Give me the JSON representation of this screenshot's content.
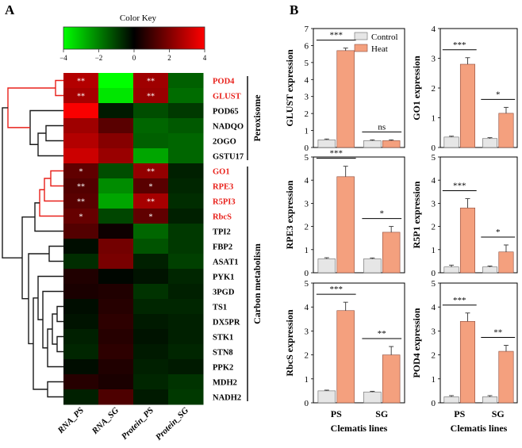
{
  "panels": {
    "a": "A",
    "b": "B"
  },
  "colors": {
    "red_highlight": "#e8201a",
    "control_bar": "#e6e6e6",
    "heat_bar": "#f4a07e",
    "bar_edge": "#8c4a3a",
    "dendro_black": "#1a1a1a"
  },
  "chart_data": [
    {
      "type": "heatmap",
      "title": "Color Key",
      "colorbar": {
        "ticks": [
          -4,
          -2,
          0,
          2,
          4
        ],
        "range": [
          -4,
          4
        ],
        "low_color": "#00ff00",
        "mid_color": "#000000",
        "high_color": "#ff0000"
      },
      "columns": [
        "RNA_PS",
        "RNA_SG",
        "Protein_PS",
        "Protein_SG"
      ],
      "rows": [
        {
          "gene": "POD4",
          "values": [
            2.8,
            -4.0,
            2.5,
            -1.5
          ],
          "marks": [
            "**",
            "",
            "**",
            ""
          ],
          "highlight": true
        },
        {
          "gene": "GLUST",
          "values": [
            2.6,
            -3.6,
            2.4,
            -1.7
          ],
          "marks": [
            "**",
            "",
            "**",
            ""
          ],
          "highlight": true
        },
        {
          "gene": "POD65",
          "values": [
            3.9,
            -0.4,
            -1.2,
            -0.9
          ],
          "marks": [
            "",
            "",
            "",
            ""
          ],
          "highlight": false
        },
        {
          "gene": "NADQO",
          "values": [
            2.5,
            1.4,
            -1.6,
            -1.4
          ],
          "marks": [
            "",
            "",
            "",
            ""
          ],
          "highlight": false
        },
        {
          "gene": "2OGO",
          "values": [
            2.8,
            2.1,
            -1.5,
            -1.6
          ],
          "marks": [
            "",
            "",
            "",
            ""
          ],
          "highlight": false
        },
        {
          "gene": "GSTU17",
          "values": [
            3.2,
            2.4,
            -2.6,
            -1.6
          ],
          "marks": [
            "",
            "",
            "",
            ""
          ],
          "highlight": false
        },
        {
          "gene": "GO1",
          "values": [
            1.5,
            -1.2,
            2.3,
            -0.5
          ],
          "marks": [
            "*",
            "",
            "**",
            ""
          ],
          "highlight": true
        },
        {
          "gene": "RPE3",
          "values": [
            1.3,
            -2.2,
            1.4,
            -0.6
          ],
          "marks": [
            "**",
            "",
            "*",
            ""
          ],
          "highlight": true
        },
        {
          "gene": "R5PI3",
          "values": [
            1.4,
            -2.6,
            2.6,
            -0.7
          ],
          "marks": [
            "**",
            "",
            "**",
            ""
          ],
          "highlight": true
        },
        {
          "gene": "RbcS",
          "values": [
            1.6,
            -1.1,
            1.5,
            -0.5
          ],
          "marks": [
            "*",
            "",
            "*",
            ""
          ],
          "highlight": true
        },
        {
          "gene": "TPI2",
          "values": [
            1.3,
            0.2,
            -1.6,
            -0.9
          ],
          "marks": [
            "",
            "",
            "",
            ""
          ],
          "highlight": false
        },
        {
          "gene": "FBP2",
          "values": [
            -0.2,
            1.8,
            -1.3,
            -0.9
          ],
          "marks": [
            "",
            "",
            "",
            ""
          ],
          "highlight": false
        },
        {
          "gene": "ASAT1",
          "values": [
            -0.7,
            1.9,
            -0.5,
            -1.0
          ],
          "marks": [
            "",
            "",
            "",
            ""
          ],
          "highlight": false
        },
        {
          "gene": "PYK1",
          "values": [
            0.5,
            -0.1,
            -0.3,
            -0.6
          ],
          "marks": [
            "",
            "",
            "",
            ""
          ],
          "highlight": false
        },
        {
          "gene": "3PGD",
          "values": [
            0.4,
            0.5,
            -0.8,
            -0.5
          ],
          "marks": [
            "",
            "",
            "",
            ""
          ],
          "highlight": false
        },
        {
          "gene": "TS1",
          "values": [
            -0.2,
            0.6,
            -0.6,
            -0.6
          ],
          "marks": [
            "",
            "",
            "",
            ""
          ],
          "highlight": false
        },
        {
          "gene": "DX5PR",
          "values": [
            -0.3,
            0.7,
            -0.4,
            -0.5
          ],
          "marks": [
            "",
            "",
            "",
            ""
          ],
          "highlight": false
        },
        {
          "gene": "STK1",
          "values": [
            -0.5,
            0.6,
            -0.3,
            -0.5
          ],
          "marks": [
            "",
            "",
            "",
            ""
          ],
          "highlight": false
        },
        {
          "gene": "STN8",
          "values": [
            -0.6,
            0.7,
            -0.4,
            -0.6
          ],
          "marks": [
            "",
            "",
            "",
            ""
          ],
          "highlight": false
        },
        {
          "gene": "PPK2",
          "values": [
            -0.2,
            0.5,
            -0.5,
            -0.4
          ],
          "marks": [
            "",
            "",
            "",
            ""
          ],
          "highlight": false
        },
        {
          "gene": "MDH2",
          "values": [
            0.6,
            0.4,
            -0.6,
            -0.8
          ],
          "marks": [
            "",
            "",
            "",
            ""
          ],
          "highlight": false
        },
        {
          "gene": "NADH2",
          "values": [
            -0.5,
            1.2,
            -0.4,
            -0.9
          ],
          "marks": [
            "",
            "",
            "",
            ""
          ],
          "highlight": false
        }
      ],
      "groups": [
        {
          "label": "Peroxisome",
          "from": "POD4",
          "to": "GSTU17"
        },
        {
          "label": "Carbon metabolism",
          "from": "GO1",
          "to": "NADH2"
        }
      ]
    },
    {
      "type": "bar",
      "legend": [
        "Control",
        "Heat"
      ],
      "xlabel": "Clematis lines",
      "categories": [
        "PS",
        "SG"
      ],
      "panels": [
        {
          "ylabel": "GLUST expression",
          "ylim": [
            0,
            7
          ],
          "yticks": [
            0,
            1,
            2,
            3,
            4,
            5,
            6,
            7
          ],
          "control": [
            0.45,
            0.4
          ],
          "control_err": [
            0.05,
            0.05
          ],
          "heat": [
            5.7,
            0.4
          ],
          "heat_err": [
            0.15,
            0.05
          ],
          "sig": [
            "***",
            "ns"
          ]
        },
        {
          "ylabel": "GO1 expression",
          "ylim": [
            0,
            4
          ],
          "yticks": [
            0,
            1,
            2,
            3,
            4
          ],
          "control": [
            0.35,
            0.3
          ],
          "control_err": [
            0.03,
            0.03
          ],
          "heat": [
            2.8,
            1.15
          ],
          "heat_err": [
            0.22,
            0.2
          ],
          "sig": [
            "***",
            "*"
          ]
        },
        {
          "ylabel": "RPE3 expression",
          "ylim": [
            0,
            5
          ],
          "yticks": [
            0,
            1,
            2,
            3,
            4,
            5
          ],
          "control": [
            0.6,
            0.6
          ],
          "control_err": [
            0.05,
            0.04
          ],
          "heat": [
            4.15,
            1.75
          ],
          "heat_err": [
            0.45,
            0.25
          ],
          "sig": [
            "***",
            "*"
          ]
        },
        {
          "ylabel": "R5P1 expression",
          "ylim": [
            0,
            5
          ],
          "yticks": [
            0,
            1,
            2,
            3,
            4,
            5
          ],
          "control": [
            0.25,
            0.25
          ],
          "control_err": [
            0.08,
            0.04
          ],
          "heat": [
            2.8,
            0.9
          ],
          "heat_err": [
            0.4,
            0.3
          ],
          "sig": [
            "***",
            "*"
          ]
        },
        {
          "ylabel": "RbcS expression",
          "ylim": [
            0,
            5
          ],
          "yticks": [
            0,
            1,
            2,
            3,
            4,
            5
          ],
          "control": [
            0.5,
            0.45
          ],
          "control_err": [
            0.03,
            0.03
          ],
          "heat": [
            3.85,
            2.0
          ],
          "heat_err": [
            0.35,
            0.35
          ],
          "sig": [
            "***",
            "**"
          ]
        },
        {
          "ylabel": "POD4 expression",
          "ylim": [
            0,
            5
          ],
          "yticks": [
            0,
            1,
            2,
            3,
            4,
            5
          ],
          "control": [
            0.25,
            0.25
          ],
          "control_err": [
            0.05,
            0.05
          ],
          "heat": [
            3.4,
            2.15
          ],
          "heat_err": [
            0.35,
            0.25
          ],
          "sig": [
            "***",
            "**"
          ]
        }
      ]
    }
  ]
}
